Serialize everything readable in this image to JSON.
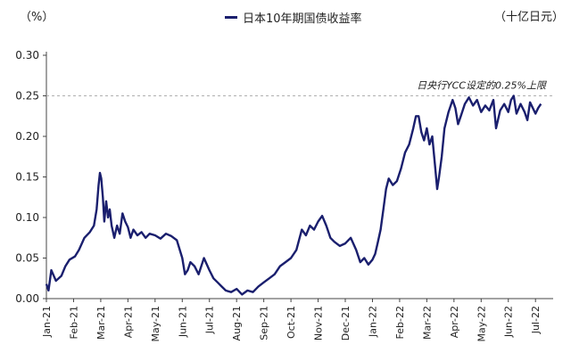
{
  "chart_data": {
    "type": "line",
    "unit_left": "（%）",
    "unit_right": "（十亿日元）",
    "series": [
      {
        "name": "日本10年期国债收益率",
        "color": "#1a1f6e",
        "points": [
          [
            0.0,
            0.018
          ],
          [
            0.08,
            0.01
          ],
          [
            0.18,
            0.035
          ],
          [
            0.35,
            0.022
          ],
          [
            0.55,
            0.028
          ],
          [
            0.7,
            0.04
          ],
          [
            0.85,
            0.048
          ],
          [
            1.05,
            0.052
          ],
          [
            1.2,
            0.06
          ],
          [
            1.4,
            0.075
          ],
          [
            1.6,
            0.082
          ],
          [
            1.75,
            0.09
          ],
          [
            1.85,
            0.11
          ],
          [
            1.92,
            0.14
          ],
          [
            1.97,
            0.155
          ],
          [
            2.02,
            0.148
          ],
          [
            2.08,
            0.125
          ],
          [
            2.13,
            0.095
          ],
          [
            2.2,
            0.12
          ],
          [
            2.27,
            0.1
          ],
          [
            2.33,
            0.11
          ],
          [
            2.4,
            0.09
          ],
          [
            2.5,
            0.075
          ],
          [
            2.6,
            0.09
          ],
          [
            2.7,
            0.08
          ],
          [
            2.8,
            0.105
          ],
          [
            2.9,
            0.095
          ],
          [
            3.0,
            0.088
          ],
          [
            3.1,
            0.075
          ],
          [
            3.2,
            0.085
          ],
          [
            3.35,
            0.078
          ],
          [
            3.5,
            0.082
          ],
          [
            3.65,
            0.075
          ],
          [
            3.8,
            0.08
          ],
          [
            4.0,
            0.078
          ],
          [
            4.2,
            0.074
          ],
          [
            4.4,
            0.08
          ],
          [
            4.6,
            0.077
          ],
          [
            4.8,
            0.072
          ],
          [
            5.0,
            0.05
          ],
          [
            5.1,
            0.03
          ],
          [
            5.2,
            0.035
          ],
          [
            5.3,
            0.045
          ],
          [
            5.45,
            0.04
          ],
          [
            5.6,
            0.03
          ],
          [
            5.8,
            0.05
          ],
          [
            6.0,
            0.035
          ],
          [
            6.15,
            0.025
          ],
          [
            6.3,
            0.02
          ],
          [
            6.45,
            0.015
          ],
          [
            6.6,
            0.01
          ],
          [
            6.8,
            0.008
          ],
          [
            7.0,
            0.012
          ],
          [
            7.2,
            0.005
          ],
          [
            7.4,
            0.01
          ],
          [
            7.6,
            0.008
          ],
          [
            7.8,
            0.015
          ],
          [
            8.0,
            0.02
          ],
          [
            8.2,
            0.025
          ],
          [
            8.4,
            0.03
          ],
          [
            8.6,
            0.04
          ],
          [
            8.8,
            0.045
          ],
          [
            9.0,
            0.05
          ],
          [
            9.2,
            0.06
          ],
          [
            9.4,
            0.085
          ],
          [
            9.55,
            0.078
          ],
          [
            9.7,
            0.09
          ],
          [
            9.85,
            0.085
          ],
          [
            10.0,
            0.095
          ],
          [
            10.15,
            0.102
          ],
          [
            10.3,
            0.09
          ],
          [
            10.45,
            0.075
          ],
          [
            10.6,
            0.07
          ],
          [
            10.8,
            0.065
          ],
          [
            11.0,
            0.068
          ],
          [
            11.2,
            0.075
          ],
          [
            11.4,
            0.06
          ],
          [
            11.55,
            0.045
          ],
          [
            11.7,
            0.05
          ],
          [
            11.85,
            0.042
          ],
          [
            12.0,
            0.048
          ],
          [
            12.1,
            0.055
          ],
          [
            12.2,
            0.07
          ],
          [
            12.3,
            0.085
          ],
          [
            12.4,
            0.11
          ],
          [
            12.5,
            0.135
          ],
          [
            12.6,
            0.148
          ],
          [
            12.75,
            0.14
          ],
          [
            12.9,
            0.145
          ],
          [
            13.05,
            0.16
          ],
          [
            13.2,
            0.18
          ],
          [
            13.35,
            0.19
          ],
          [
            13.5,
            0.21
          ],
          [
            13.6,
            0.225
          ],
          [
            13.7,
            0.225
          ],
          [
            13.8,
            0.205
          ],
          [
            13.9,
            0.195
          ],
          [
            14.0,
            0.21
          ],
          [
            14.1,
            0.19
          ],
          [
            14.2,
            0.2
          ],
          [
            14.3,
            0.165
          ],
          [
            14.38,
            0.135
          ],
          [
            14.45,
            0.15
          ],
          [
            14.55,
            0.175
          ],
          [
            14.65,
            0.21
          ],
          [
            14.8,
            0.23
          ],
          [
            14.95,
            0.245
          ],
          [
            15.05,
            0.235
          ],
          [
            15.15,
            0.215
          ],
          [
            15.25,
            0.225
          ],
          [
            15.4,
            0.24
          ],
          [
            15.55,
            0.248
          ],
          [
            15.7,
            0.238
          ],
          [
            15.85,
            0.245
          ],
          [
            16.0,
            0.23
          ],
          [
            16.15,
            0.238
          ],
          [
            16.3,
            0.232
          ],
          [
            16.45,
            0.245
          ],
          [
            16.55,
            0.21
          ],
          [
            16.7,
            0.232
          ],
          [
            16.85,
            0.24
          ],
          [
            17.0,
            0.23
          ],
          [
            17.1,
            0.245
          ],
          [
            17.2,
            0.25
          ],
          [
            17.3,
            0.228
          ],
          [
            17.45,
            0.24
          ],
          [
            17.6,
            0.23
          ],
          [
            17.7,
            0.22
          ],
          [
            17.8,
            0.242
          ],
          [
            17.9,
            0.235
          ],
          [
            18.0,
            0.228
          ],
          [
            18.1,
            0.235
          ],
          [
            18.2,
            0.24
          ]
        ]
      }
    ],
    "categories": [
      "Jan-21",
      "Feb-21",
      "Mar-21",
      "Apr-21",
      "May-21",
      "Jun-21",
      "Jul-21",
      "Aug-21",
      "Sep-21",
      "Oct-21",
      "Nov-21",
      "Dec-21",
      "Jan-22",
      "Feb-22",
      "Mar-22",
      "Apr-22",
      "May-22",
      "Jun-22",
      "Jul-22"
    ],
    "yticks": [
      "0.00",
      "0.05",
      "0.10",
      "0.15",
      "0.20",
      "0.25",
      "0.30"
    ],
    "ylim": [
      0,
      0.3
    ],
    "reference_line": {
      "value": 0.25,
      "label": "日央行YCC设定的0.25%上限"
    },
    "grid": false,
    "legend_position": "top-center"
  }
}
